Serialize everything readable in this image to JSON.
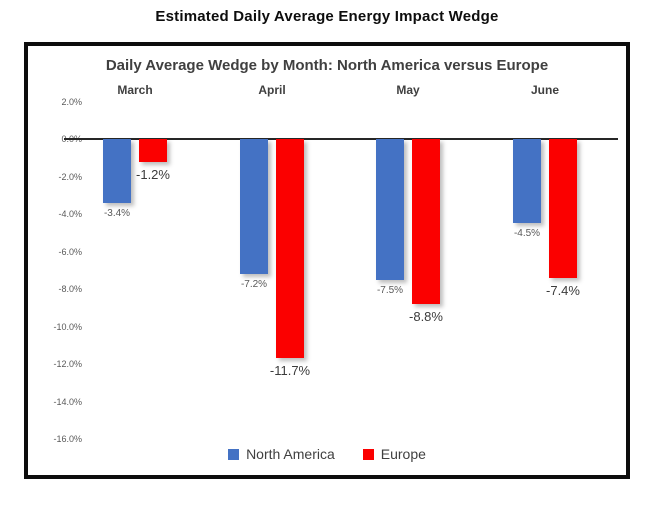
{
  "page": {
    "title": "Estimated Daily Average Energy Impact Wedge"
  },
  "chart_data": {
    "type": "bar",
    "title": "Daily Average Wedge by Month: North America versus Europe",
    "categories": [
      "March",
      "April",
      "May",
      "June"
    ],
    "series": [
      {
        "name": "North America",
        "color": "#4472C4",
        "values": [
          -3.4,
          -7.2,
          -7.5,
          -4.5
        ],
        "labels": [
          "-3.4%",
          "-7.2%",
          "-7.5%",
          "-4.5%"
        ]
      },
      {
        "name": "Europe",
        "color": "#FB0000",
        "values": [
          -1.2,
          -11.7,
          -8.8,
          -7.4
        ],
        "labels": [
          "-1.2%",
          "-11.7%",
          "-8.8%",
          "-7.4%"
        ]
      }
    ],
    "y_ticks": [
      {
        "label": "2.0%",
        "value": 2.0
      },
      {
        "label": "0.0%",
        "value": 0.0
      },
      {
        "label": "-2.0%",
        "value": -2.0
      },
      {
        "label": "-4.0%",
        "value": -4.0
      },
      {
        "label": "-6.0%",
        "value": -6.0
      },
      {
        "label": "-8.0%",
        "value": -8.0
      },
      {
        "label": "-10.0%",
        "value": -10.0
      },
      {
        "label": "-12.0%",
        "value": -12.0
      },
      {
        "label": "-14.0%",
        "value": -14.0
      },
      {
        "label": "-16.0%",
        "value": -16.0
      }
    ],
    "ylim": [
      -16.0,
      2.0
    ],
    "grid": false,
    "legend_position": "bottom"
  }
}
